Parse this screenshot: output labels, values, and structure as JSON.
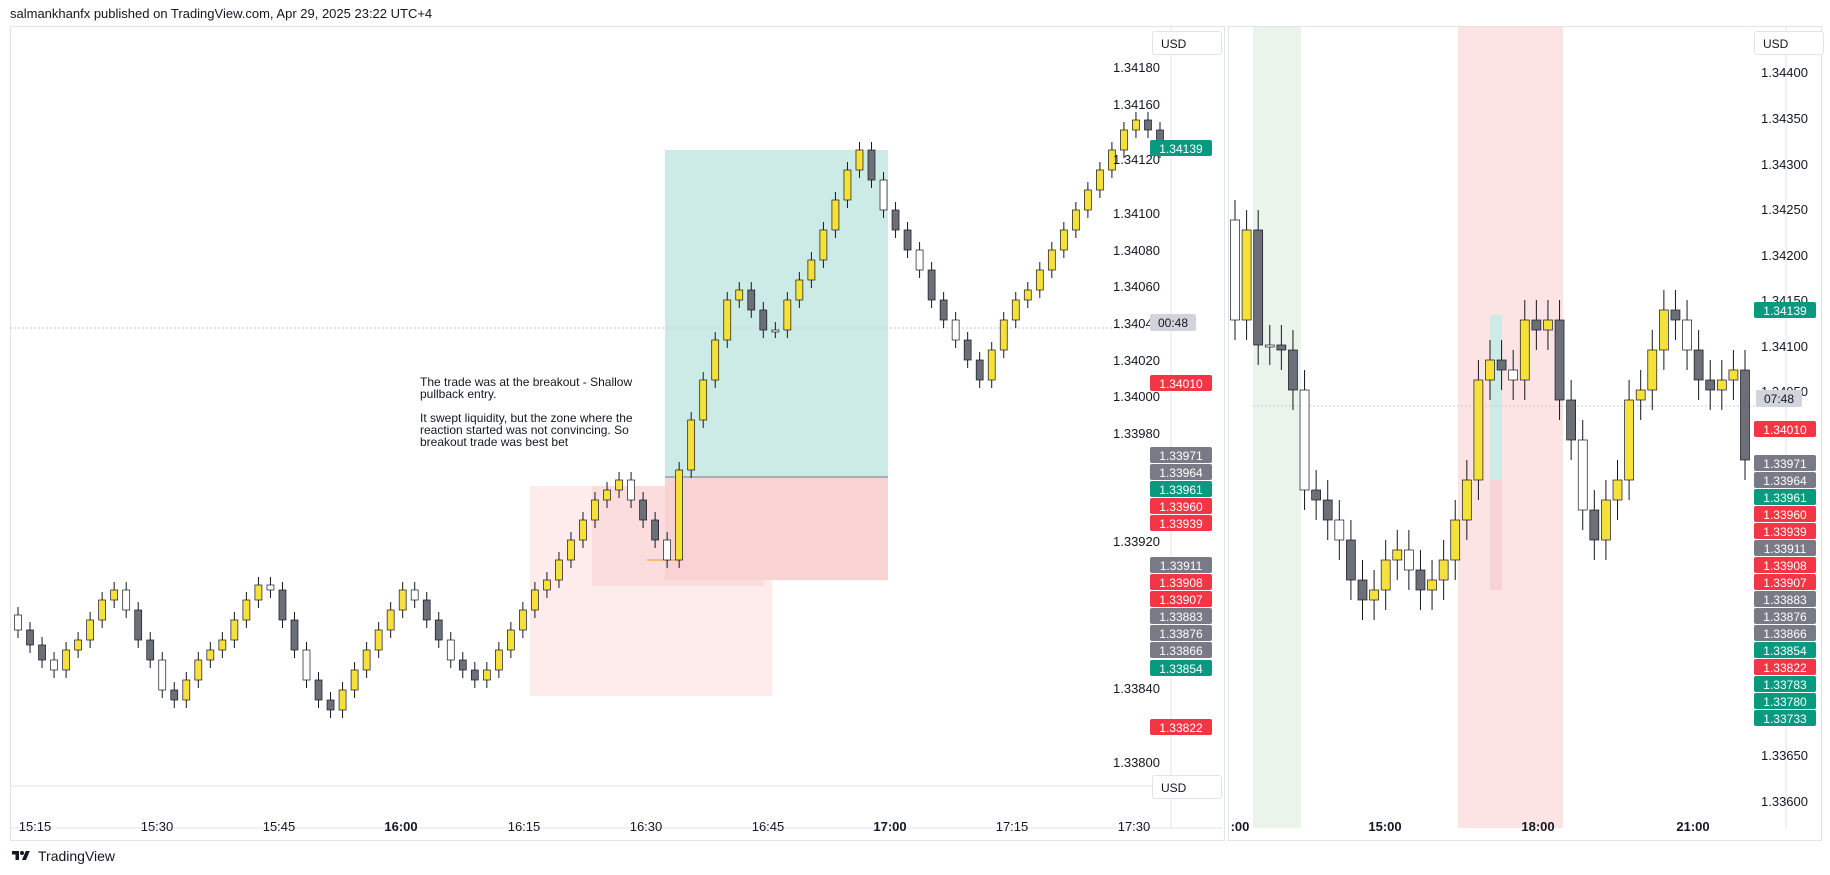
{
  "header": {
    "published": "salmankhanfx published on TradingView.com, Apr 29, 2025 23:22 UTC+4"
  },
  "footer": {
    "brand": "TradingView"
  },
  "colors": {
    "up": "#f5e13a",
    "down": "#6d6f78",
    "wick": "#131722",
    "green_label": "#089981",
    "red_label": "#f23645",
    "gray_label": "#787b86",
    "target_zone": "#cdebe6",
    "stop_zone": "#f9d3d3",
    "session_green": "#eaf4ea",
    "session_red": "#fde4e4"
  },
  "left_chart": {
    "currency": "USD",
    "currency_bottom": "USD",
    "countdown": "00:48",
    "price_ticks": [
      "1.34180",
      "1.34160",
      "1.34120",
      "1.34100",
      "1.34080",
      "1.34060",
      "1.34020",
      "1.34000",
      "1.33980",
      "1.33920",
      "1.33840",
      "1.33800"
    ],
    "price_ticks_partial": "1.34040",
    "time_ticks": [
      "15:15",
      "15:30",
      "15:45",
      "16:00",
      "16:15",
      "16:30",
      "16:45",
      "17:00",
      "17:15",
      "17:30"
    ],
    "labels": [
      {
        "text": "1.34139",
        "color": "green"
      },
      {
        "text": "1.34010",
        "color": "red"
      },
      {
        "text": "1.33971",
        "color": "gray"
      },
      {
        "text": "1.33964",
        "color": "gray"
      },
      {
        "text": "1.33961",
        "color": "green"
      },
      {
        "text": "1.33960",
        "color": "red"
      },
      {
        "text": "1.33939",
        "color": "red"
      },
      {
        "text": "1.33911",
        "color": "gray"
      },
      {
        "text": "1.33908",
        "color": "red"
      },
      {
        "text": "1.33907",
        "color": "red"
      },
      {
        "text": "1.33883",
        "color": "gray"
      },
      {
        "text": "1.33876",
        "color": "gray"
      },
      {
        "text": "1.33866",
        "color": "gray"
      },
      {
        "text": "1.33854",
        "color": "green"
      },
      {
        "text": "1.33822",
        "color": "red"
      }
    ],
    "annotation": "The trade was at the breakout - Shallow pullback entry.\n\nIt swept liquidity, but the zone where the reaction started was not convincing. So breakout trade was best bet"
  },
  "right_chart": {
    "currency": "USD",
    "countdown": "07:48",
    "price_ticks": [
      "1.34400",
      "1.34350",
      "1.34300",
      "1.34250",
      "1.34200",
      "1.34100",
      "1.33650",
      "1.33600"
    ],
    "price_ticks_partial": [
      "1.34150",
      "1.34050"
    ],
    "time_ticks": [
      ":00",
      "15:00",
      "18:00",
      "21:00"
    ],
    "labels": [
      {
        "text": "1.34139",
        "color": "green"
      },
      {
        "text": "1.34010",
        "color": "red"
      },
      {
        "text": "1.33971",
        "color": "gray"
      },
      {
        "text": "1.33964",
        "color": "gray"
      },
      {
        "text": "1.33961",
        "color": "green"
      },
      {
        "text": "1.33960",
        "color": "red"
      },
      {
        "text": "1.33939",
        "color": "red"
      },
      {
        "text": "1.33911",
        "color": "gray"
      },
      {
        "text": "1.33908",
        "color": "red"
      },
      {
        "text": "1.33907",
        "color": "red"
      },
      {
        "text": "1.33883",
        "color": "gray"
      },
      {
        "text": "1.33876",
        "color": "gray"
      },
      {
        "text": "1.33866",
        "color": "gray"
      },
      {
        "text": "1.33854",
        "color": "green"
      },
      {
        "text": "1.33822",
        "color": "red"
      },
      {
        "text": "1.33783",
        "color": "green"
      },
      {
        "text": "1.33780",
        "color": "green"
      },
      {
        "text": "1.33733",
        "color": "green"
      }
    ]
  }
}
